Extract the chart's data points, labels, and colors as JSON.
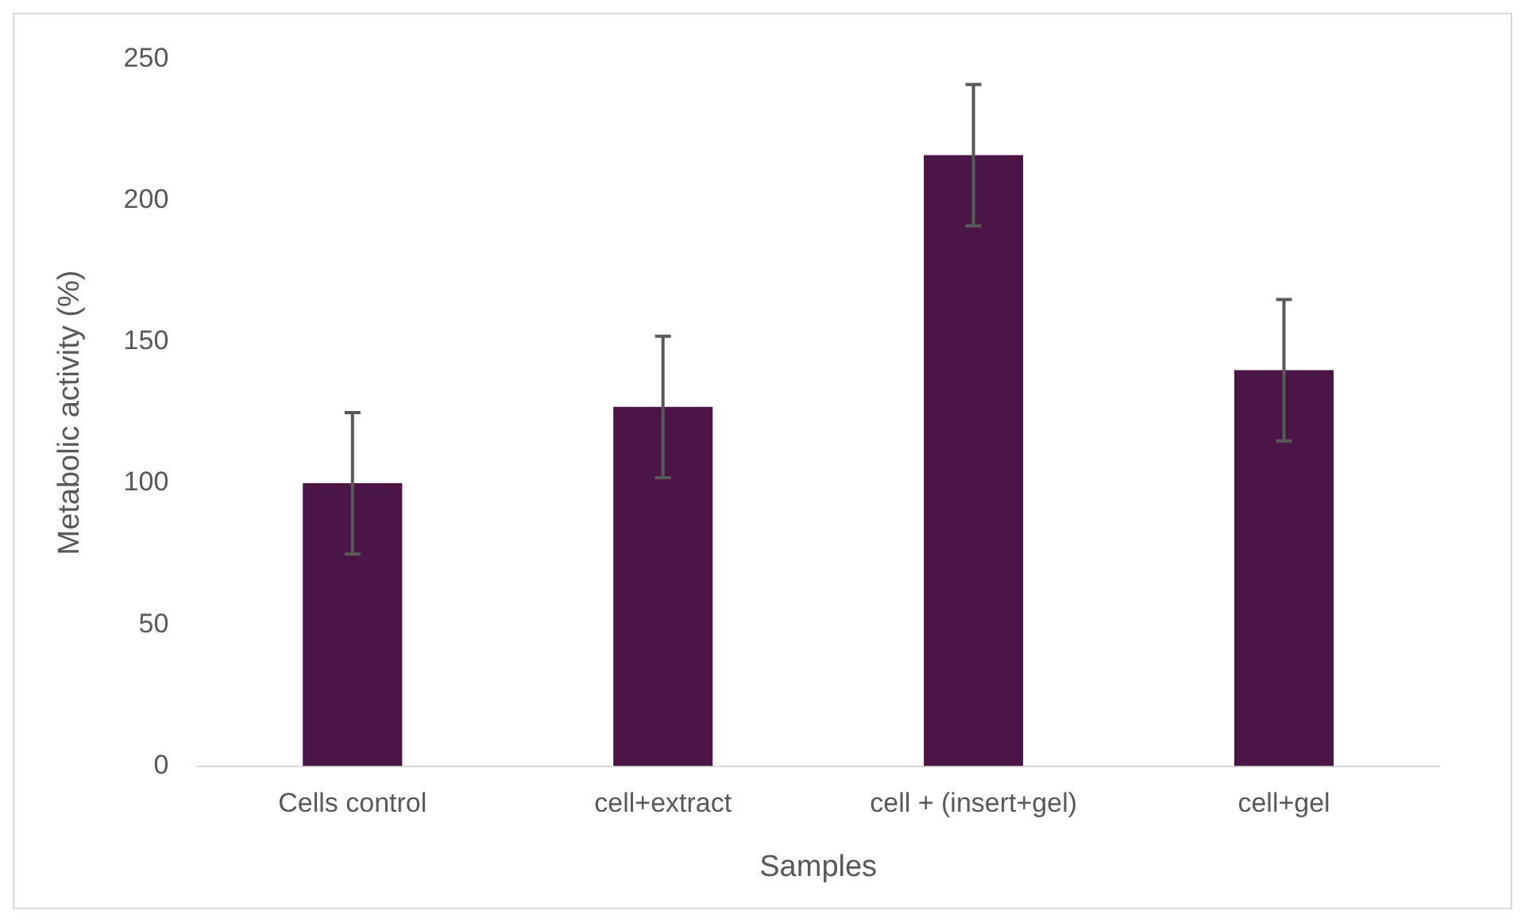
{
  "chart_data": {
    "type": "bar",
    "xlabel": "Samples",
    "ylabel": "Metabolic activity (%)",
    "categories": [
      "Cells control",
      "cell+extract",
      "cell + (insert+gel)",
      "cell+gel"
    ],
    "values": [
      100,
      127,
      216,
      140
    ],
    "errors": [
      25,
      25,
      25,
      25
    ],
    "color": "#4b1545",
    "ylim": [
      0,
      250
    ],
    "yticks": [
      0,
      50,
      100,
      150,
      200,
      250
    ],
    "grid": false,
    "legend": false
  }
}
